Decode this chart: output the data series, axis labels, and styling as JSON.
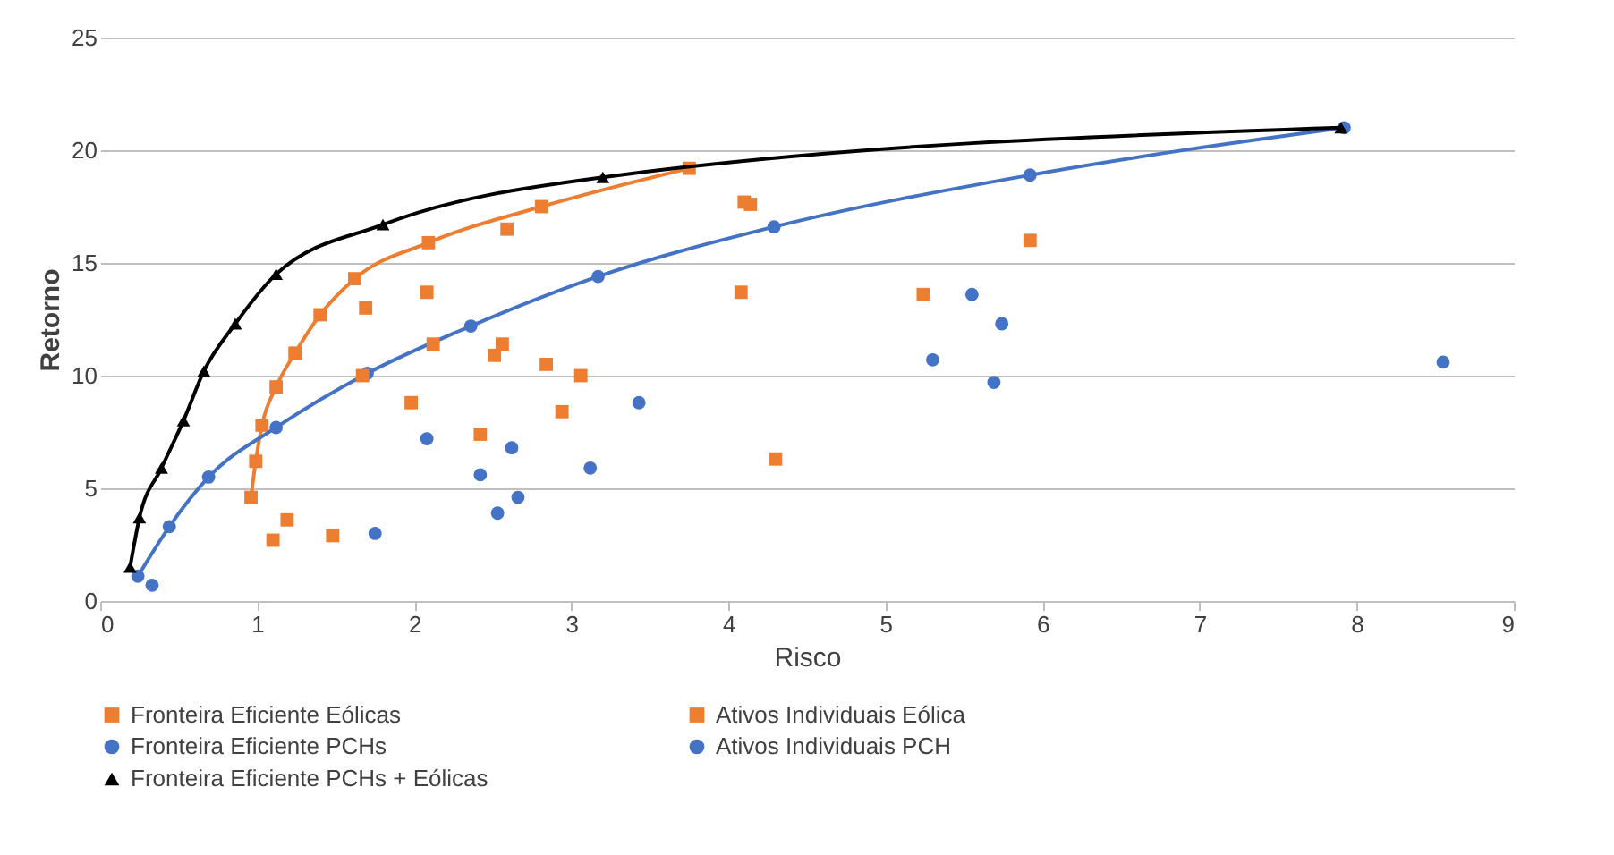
{
  "chart_data": {
    "type": "line",
    "xlabel": "Risco",
    "ylabel": "Retorno",
    "xlim": [
      0,
      9
    ],
    "xticks": [
      0,
      1,
      2,
      3,
      4,
      5,
      6,
      7,
      8,
      9
    ],
    "ylim": [
      0,
      25
    ],
    "yticks": [
      0,
      5,
      10,
      15,
      20,
      25
    ],
    "grid": "y",
    "legend": "bottom",
    "series": [
      {
        "name": "Fronteira Eficiente Eólicas",
        "marker": "square",
        "color": "#ed7d31",
        "x": [
          0.96,
          0.99,
          1.03,
          1.12,
          1.24,
          1.4,
          1.62,
          2.09,
          2.81,
          3.75
        ],
        "values": [
          4.6,
          6.2,
          7.8,
          9.5,
          11.0,
          12.7,
          14.3,
          15.9,
          17.5,
          19.2
        ]
      },
      {
        "name": "Ativos Individuais Eólica",
        "type": "scatter",
        "marker": "square",
        "color": "#ed7d31",
        "x": [
          1.1,
          1.19,
          1.48,
          1.69,
          2.08,
          1.67,
          1.98,
          2.12,
          2.59,
          2.51,
          2.56,
          2.42,
          2.84,
          2.94,
          3.06,
          4.1,
          4.14,
          4.08,
          4.3,
          5.24,
          5.92
        ],
        "values": [
          2.7,
          3.6,
          2.9,
          13.0,
          13.7,
          10.0,
          8.8,
          11.4,
          16.5,
          10.9,
          11.4,
          7.4,
          10.5,
          8.4,
          10.0,
          17.7,
          17.6,
          13.7,
          6.3,
          13.6,
          16.0
        ]
      },
      {
        "name": "Fronteira Eficiente PCHs",
        "marker": "circle",
        "color": "#4472c4",
        "x": [
          0.24,
          0.44,
          0.69,
          1.12,
          1.7,
          2.36,
          3.17,
          4.29,
          5.92,
          7.92
        ],
        "values": [
          1.1,
          3.3,
          5.5,
          7.7,
          10.1,
          12.2,
          14.4,
          16.6,
          18.9,
          21.0
        ]
      },
      {
        "name": "Ativos Individuais PCH",
        "type": "scatter",
        "marker": "circle",
        "color": "#4472c4",
        "x": [
          0.33,
          1.75,
          2.08,
          2.42,
          2.62,
          2.53,
          2.66,
          3.12,
          3.43,
          5.3,
          5.55,
          5.69,
          5.74,
          8.55
        ],
        "values": [
          0.7,
          3.0,
          7.2,
          5.6,
          6.8,
          3.9,
          4.6,
          5.9,
          8.8,
          10.7,
          13.6,
          9.7,
          12.3,
          10.6
        ]
      },
      {
        "name": "Fronteira Eficiente PCHs + Eólicas",
        "marker": "triangle",
        "color": "#000000",
        "x": [
          0.19,
          0.25,
          0.39,
          0.53,
          0.66,
          0.86,
          1.12,
          1.8,
          3.2,
          7.9
        ],
        "values": [
          1.5,
          3.7,
          5.9,
          8.0,
          10.2,
          12.3,
          14.5,
          16.7,
          18.8,
          21.0
        ]
      }
    ]
  }
}
